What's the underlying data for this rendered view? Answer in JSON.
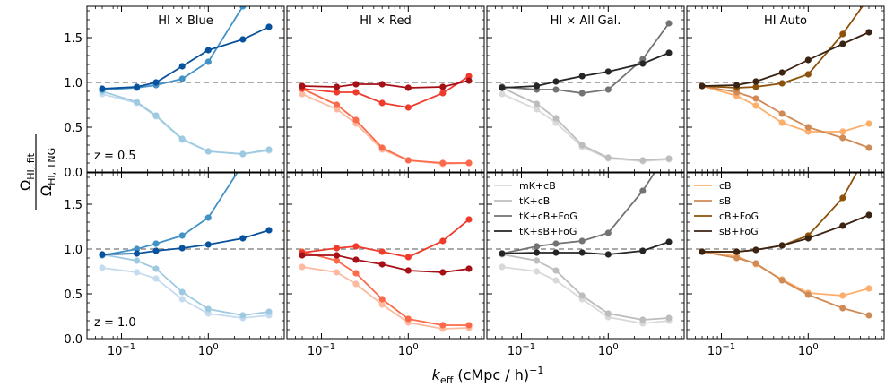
{
  "chart_data": {
    "type": "line",
    "x": [
      0.06,
      0.15,
      0.25,
      0.5,
      1.0,
      2.5,
      5.0
    ],
    "xscale": "log",
    "xlim": [
      0.04,
      7.5
    ],
    "ylim": [
      0.0,
      1.85
    ],
    "yticks": [
      "0.0",
      "0.5",
      "1.0",
      "1.5"
    ],
    "xticks": [
      {
        "base": "10",
        "exp": "−1"
      },
      {
        "base": "10",
        "exp": "0"
      }
    ],
    "xlabel": {
      "main": "k",
      "sub": "eff",
      "rest": " (cMpc / h)",
      "sup": "−1"
    },
    "ylabel": {
      "num_main": "Ω",
      "num_sub": "HI, fit",
      "den_main": "Ω",
      "den_sub": "HI, TNG"
    },
    "reference_line": 1.0,
    "columns": [
      {
        "title": "HI × Blue",
        "colors": [
          "#c6dbef",
          "#9ecae1",
          "#4292c6",
          "#08519c"
        ],
        "rows": [
          {
            "z_label": "z = 0.5",
            "series": [
              [
                0.87,
                0.77,
                0.62,
                0.36,
                0.23,
                0.2,
                0.24
              ],
              [
                0.9,
                0.78,
                0.63,
                0.37,
                0.23,
                0.2,
                0.25
              ],
              [
                0.92,
                0.94,
                0.97,
                1.04,
                1.23,
                1.85,
                2.1
              ],
              [
                0.93,
                0.95,
                1.0,
                1.18,
                1.36,
                1.48,
                1.62
              ]
            ]
          },
          {
            "z_label": "z = 1.0",
            "series": [
              [
                0.79,
                0.74,
                0.67,
                0.44,
                0.28,
                0.23,
                0.26
              ],
              [
                0.94,
                0.87,
                0.78,
                0.52,
                0.33,
                0.26,
                0.3
              ],
              [
                0.93,
                1.0,
                1.06,
                1.15,
                1.35,
                1.95,
                2.1
              ],
              [
                0.94,
                0.95,
                0.98,
                1.01,
                1.05,
                1.12,
                1.21
              ]
            ]
          }
        ]
      },
      {
        "title": "HI × Red",
        "colors": [
          "#fcbba1",
          "#fb6a4a",
          "#ef3b2c",
          "#a50f15"
        ],
        "rows": [
          {
            "z_label": "",
            "series": [
              [
                0.87,
                0.7,
                0.54,
                0.25,
                0.13,
                0.09,
                0.1
              ],
              [
                0.93,
                0.75,
                0.58,
                0.27,
                0.13,
                0.1,
                0.1
              ],
              [
                0.93,
                0.89,
                0.89,
                0.77,
                0.72,
                0.88,
                1.07
              ],
              [
                0.96,
                0.95,
                0.98,
                0.98,
                0.94,
                0.95,
                1.02
              ]
            ]
          },
          {
            "z_label": "",
            "series": [
              [
                0.8,
                0.74,
                0.61,
                0.38,
                0.18,
                0.11,
                0.12
              ],
              [
                0.97,
                0.87,
                0.73,
                0.44,
                0.22,
                0.15,
                0.15
              ],
              [
                0.96,
                1.01,
                1.03,
                0.97,
                0.91,
                1.09,
                1.33
              ],
              [
                0.93,
                0.93,
                0.88,
                0.83,
                0.76,
                0.74,
                0.78
              ]
            ]
          }
        ]
      },
      {
        "title": "HI × All Gal.",
        "colors": [
          "#d9d9d9",
          "#bdbdbd",
          "#737373",
          "#252525"
        ],
        "rows": [
          {
            "z_label": "",
            "series": [
              [
                0.87,
                0.7,
                0.55,
                0.28,
                0.15,
                0.12,
                0.14
              ],
              [
                0.94,
                0.76,
                0.6,
                0.3,
                0.16,
                0.13,
                0.15
              ],
              [
                0.95,
                0.92,
                0.92,
                0.88,
                0.92,
                1.26,
                1.66
              ],
              [
                0.94,
                0.96,
                1.01,
                1.07,
                1.12,
                1.21,
                1.33
              ]
            ]
          },
          {
            "z_label": "",
            "series": [
              [
                0.8,
                0.75,
                0.65,
                0.44,
                0.24,
                0.17,
                0.2
              ],
              [
                0.94,
                0.87,
                0.76,
                0.48,
                0.28,
                0.21,
                0.23
              ],
              [
                0.95,
                1.03,
                1.06,
                1.09,
                1.18,
                1.65,
                2.1
              ],
              [
                0.95,
                0.96,
                0.96,
                0.96,
                0.94,
                0.98,
                1.08
              ]
            ]
          }
        ]
      },
      {
        "title": "HI Auto",
        "colors": [
          "#fdae6b",
          "#d08a56",
          "#8c510a",
          "#3b2314"
        ],
        "rows": [
          {
            "z_label": "",
            "series": [
              [
                0.96,
                0.85,
                0.74,
                0.55,
                0.45,
                0.45,
                0.54
              ],
              [
                0.96,
                0.89,
                0.82,
                0.65,
                0.5,
                0.38,
                0.27
              ],
              [
                0.96,
                0.94,
                0.95,
                0.99,
                1.09,
                1.54,
                1.95
              ],
              [
                0.96,
                0.97,
                1.01,
                1.11,
                1.25,
                1.43,
                1.56
              ]
            ]
          },
          {
            "z_label": "",
            "series": [
              [
                0.97,
                0.92,
                0.83,
                0.66,
                0.51,
                0.48,
                0.56
              ],
              [
                0.97,
                0.9,
                0.84,
                0.65,
                0.49,
                0.34,
                0.26
              ],
              [
                0.97,
                0.97,
                0.99,
                1.04,
                1.15,
                1.57,
                2.1
              ],
              [
                0.97,
                0.97,
                0.99,
                1.04,
                1.12,
                1.26,
                1.38
              ]
            ]
          }
        ]
      }
    ],
    "legends": [
      {
        "column": 2,
        "placement": "top-left",
        "entries": [
          "mK+cB",
          "tK+cB",
          "tK+cB+FoG",
          "tK+sB+FoG"
        ]
      },
      {
        "column": 3,
        "placement": "top-left",
        "entries": [
          "cB",
          "sB",
          "cB+FoG",
          "sB+FoG"
        ]
      }
    ]
  }
}
